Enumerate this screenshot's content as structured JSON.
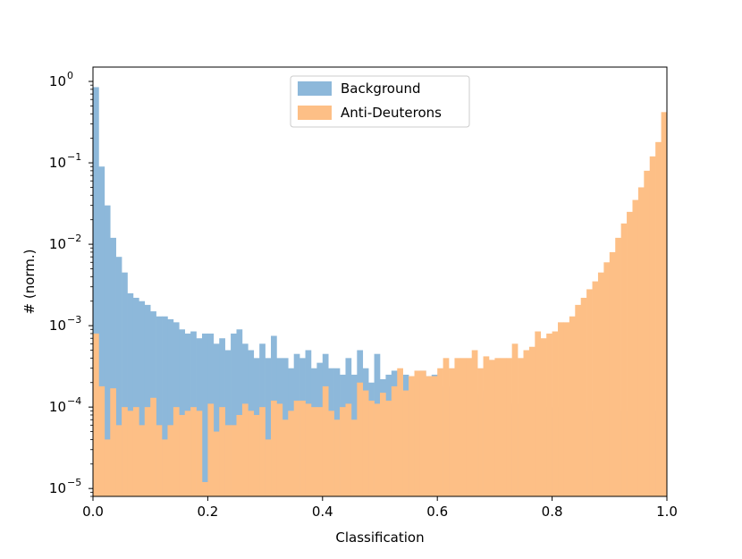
{
  "chart_data": {
    "type": "histogram",
    "xlabel": "Classification",
    "ylabel": "# (norm.)",
    "xlim": [
      0,
      1
    ],
    "ylim": [
      8e-06,
      1.5
    ],
    "yscale": "log",
    "bins": 100,
    "x_ticks": [
      {
        "value": 0.0,
        "label": "0.0"
      },
      {
        "value": 0.2,
        "label": "0.2"
      },
      {
        "value": 0.4,
        "label": "0.4"
      },
      {
        "value": 0.6,
        "label": "0.6"
      },
      {
        "value": 0.8,
        "label": "0.8"
      },
      {
        "value": 1.0,
        "label": "1.0"
      }
    ],
    "y_ticks": [
      {
        "value": 1e-05,
        "base": "10",
        "exp": "−5"
      },
      {
        "value": 0.0001,
        "base": "10",
        "exp": "−4"
      },
      {
        "value": 0.001,
        "base": "10",
        "exp": "−3"
      },
      {
        "value": 0.01,
        "base": "10",
        "exp": "−2"
      },
      {
        "value": 0.1,
        "base": "10",
        "exp": "−1"
      },
      {
        "value": 1,
        "base": "10",
        "exp": "0"
      }
    ],
    "legend_position": "top-center",
    "series": [
      {
        "name": "Background",
        "color": "#8db8da",
        "values": [
          0.85,
          0.09,
          0.03,
          0.012,
          0.007,
          0.0045,
          0.0025,
          0.0022,
          0.002,
          0.0018,
          0.0015,
          0.0013,
          0.0013,
          0.0012,
          0.0011,
          0.0009,
          0.0008,
          0.00085,
          0.0007,
          0.0008,
          0.0008,
          0.0006,
          0.0007,
          0.0005,
          0.0008,
          0.0009,
          0.0006,
          0.0005,
          0.0004,
          0.0006,
          0.0004,
          0.00075,
          0.0004,
          0.0004,
          0.0003,
          0.00045,
          0.0004,
          0.0005,
          0.0003,
          0.00035,
          0.00045,
          0.0003,
          0.0003,
          0.00025,
          0.0004,
          0.00025,
          0.0005,
          0.0003,
          0.0002,
          0.00045,
          0.00022,
          0.00025,
          0.00028,
          0.00015,
          0.00025,
          0.00015,
          0.00021,
          0.00028,
          0.00024,
          0.00025,
          0.00018,
          0.00018,
          0.00018,
          0.00019,
          0.00013,
          0.00014,
          0.00014,
          0.00016,
          0.00013,
          0.00014,
          0.00012,
          0.00012,
          0.00011,
          0.00011,
          0.00011,
          0.00012,
          0.0001,
          0.00011,
          0.0001,
          0.0001,
          0.0001,
          0.0001,
          0.0001,
          0.0001,
          9e-05,
          9e-05,
          9e-05,
          9e-05,
          9e-05,
          9e-05,
          9e-05,
          9e-05,
          9e-05,
          9e-05,
          9e-05,
          9e-05,
          9e-05,
          9e-05,
          9e-05,
          9e-05
        ]
      },
      {
        "name": "Anti-Deuterons",
        "color": "#fdbf86",
        "values": [
          0.0008,
          0.00018,
          4e-05,
          0.00017,
          6e-05,
          0.0001,
          9e-05,
          0.0001,
          6e-05,
          0.0001,
          0.00013,
          6e-05,
          4e-05,
          6e-05,
          0.0001,
          8e-05,
          9e-05,
          0.0001,
          9e-05,
          1.2e-05,
          0.00011,
          5e-05,
          0.0001,
          6e-05,
          6e-05,
          8e-05,
          0.00011,
          9e-05,
          8e-05,
          0.0001,
          4e-05,
          0.00012,
          0.00011,
          7e-05,
          9e-05,
          0.00012,
          0.00012,
          0.00011,
          0.0001,
          0.0001,
          0.00018,
          9e-05,
          7e-05,
          0.0001,
          0.00011,
          7e-05,
          0.0002,
          0.00016,
          0.00012,
          0.00011,
          0.00015,
          0.00012,
          0.00018,
          0.0003,
          0.00016,
          0.00024,
          0.00028,
          0.00028,
          0.00024,
          0.00024,
          0.0003,
          0.0004,
          0.0003,
          0.0004,
          0.0004,
          0.0004,
          0.0005,
          0.0003,
          0.00042,
          0.00038,
          0.0004,
          0.0004,
          0.0004,
          0.0006,
          0.0004,
          0.0005,
          0.00055,
          0.00085,
          0.0007,
          0.0008,
          0.00085,
          0.0011,
          0.0011,
          0.0013,
          0.0018,
          0.0022,
          0.0028,
          0.0035,
          0.0045,
          0.006,
          0.008,
          0.012,
          0.018,
          0.025,
          0.035,
          0.05,
          0.08,
          0.12,
          0.18,
          0.42
        ]
      }
    ]
  }
}
